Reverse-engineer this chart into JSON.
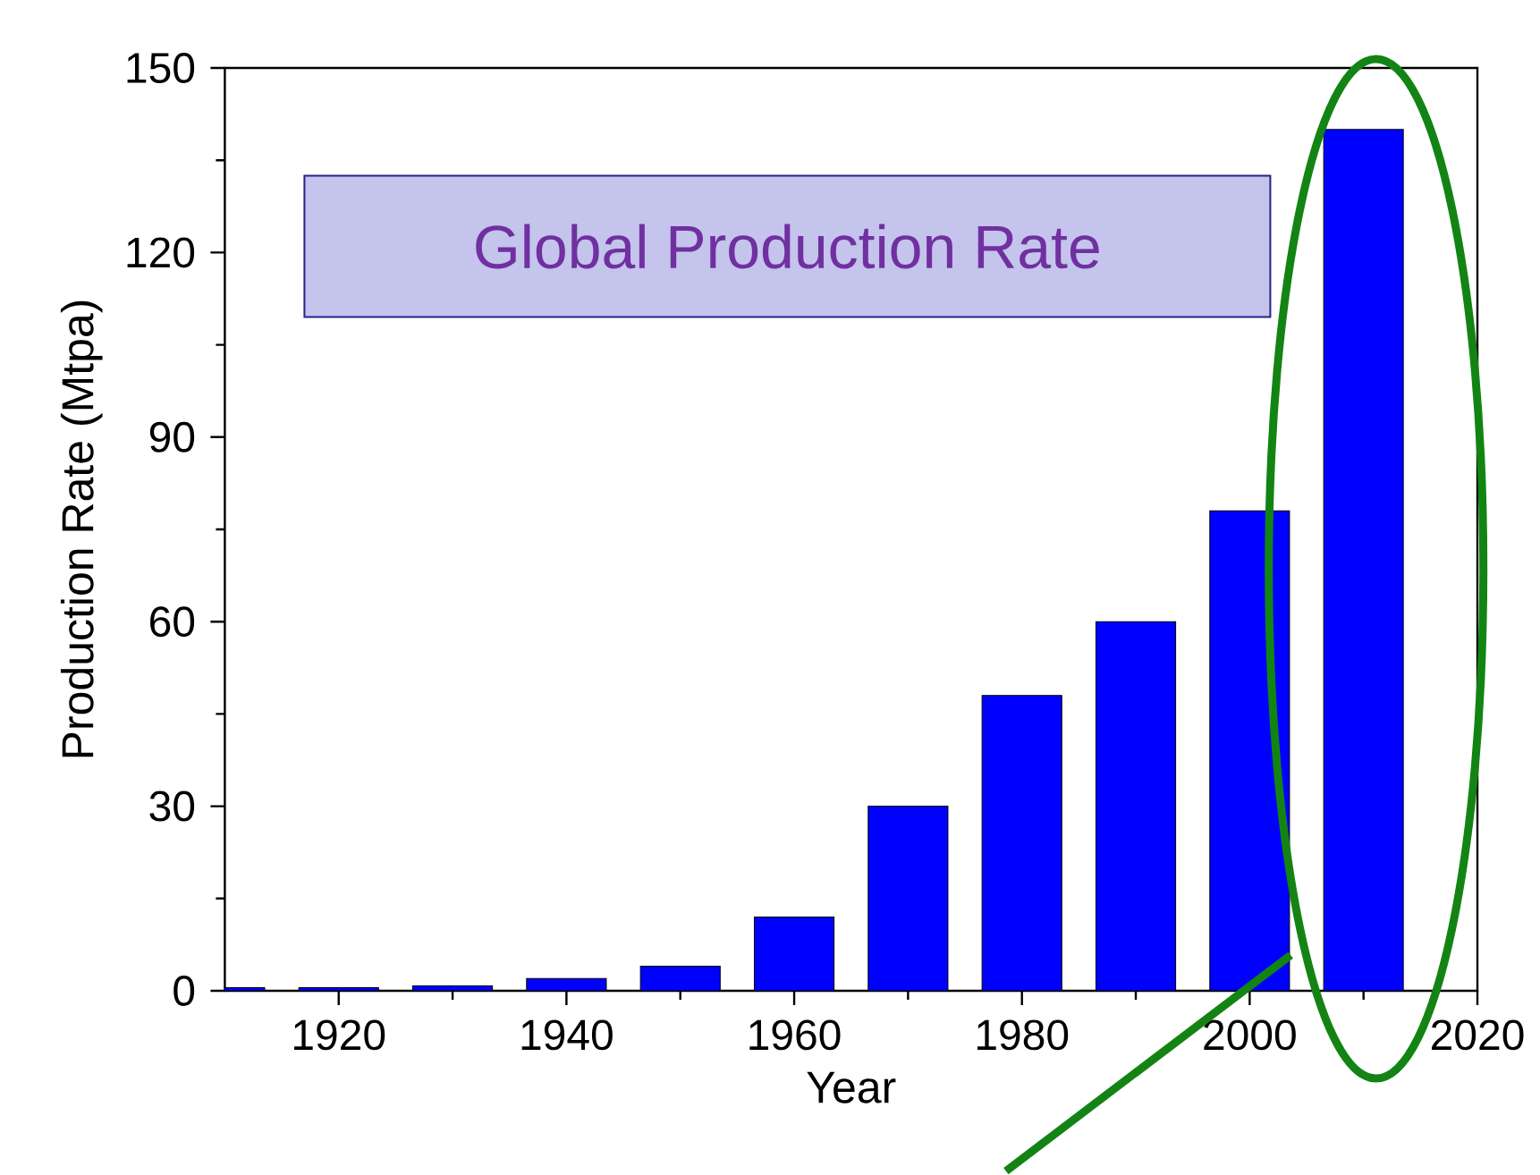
{
  "chart_data": {
    "type": "bar",
    "title": "Global Production Rate",
    "xlabel": "Year",
    "ylabel": "Production Rate (Mtpa)",
    "x": [
      1910,
      1920,
      1930,
      1940,
      1950,
      1960,
      1970,
      1980,
      1990,
      2000,
      2010
    ],
    "values": [
      0.5,
      0.5,
      0.8,
      2,
      4,
      12,
      30,
      48,
      60,
      78,
      140
    ],
    "color": "#0000ff",
    "xlim": [
      1910,
      2020
    ],
    "xticks": [
      1920,
      1940,
      1960,
      1980,
      2000,
      2020
    ],
    "ylim": [
      0,
      150
    ],
    "yticks": [
      0,
      30,
      60,
      90,
      120,
      150
    ]
  }
}
